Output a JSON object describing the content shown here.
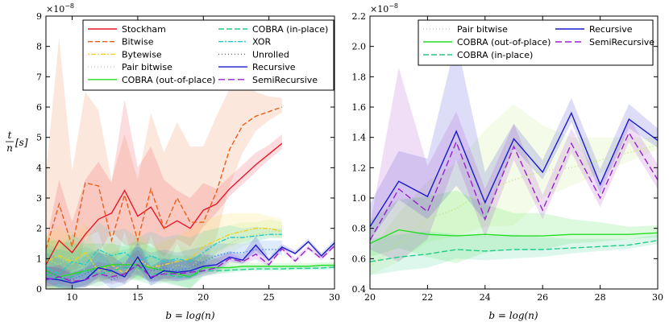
{
  "chart_data": [
    {
      "type": "line",
      "panel": "left",
      "title": "",
      "xlabel": "b = log(n)",
      "ylabel_num": "t",
      "ylabel_den": "n",
      "ylabel_unit": "[s]",
      "scale_base": "×10",
      "scale_exp": "−8",
      "xlim": [
        8,
        30
      ],
      "ylim": [
        0,
        9
      ],
      "xticks": [
        10,
        15,
        20,
        25,
        30
      ],
      "yticks": [
        0,
        1,
        2,
        3,
        4,
        5,
        6,
        7,
        8,
        9
      ],
      "legend_position": "top-right",
      "legend_columns": 2,
      "series": [
        {
          "name": "Stockham",
          "color": "#e8172b",
          "dash": "",
          "x": [
            8,
            9,
            10,
            11,
            12,
            13,
            14,
            15,
            16,
            17,
            18,
            19,
            20,
            21,
            22,
            23,
            24,
            25,
            26
          ],
          "values": [
            0.8,
            1.6,
            1.2,
            1.8,
            2.3,
            2.5,
            3.25,
            2.4,
            2.7,
            2.0,
            2.25,
            2.0,
            2.6,
            2.8,
            3.3,
            3.7,
            4.1,
            4.45,
            4.8
          ],
          "band": [
            0.7,
            2.0,
            1.0,
            1.8,
            1.9,
            1.0,
            3.0,
            1.6,
            2.0,
            1.6,
            1.0,
            1.0,
            0.9,
            0.5,
            0.4,
            0.4,
            0.4,
            0.3,
            0.3
          ]
        },
        {
          "name": "Bitwise",
          "color": "#e8601c",
          "dash": "6,3",
          "x": [
            8,
            9,
            10,
            11,
            12,
            13,
            14,
            15,
            16,
            17,
            18,
            19,
            20,
            21,
            22,
            23,
            24,
            25,
            26
          ],
          "values": [
            1.3,
            2.8,
            1.4,
            3.5,
            3.4,
            1.6,
            3.1,
            1.6,
            3.3,
            2.0,
            3.0,
            2.2,
            2.2,
            3.2,
            4.6,
            5.4,
            5.7,
            5.85,
            6.0
          ],
          "band": [
            2.5,
            5.5,
            2.5,
            3.0,
            2.5,
            2.0,
            2.0,
            2.0,
            2.5,
            2.5,
            2.5,
            2.5,
            2.5,
            2.5,
            2.0,
            1.5,
            0.8,
            0.5,
            0.3
          ]
        },
        {
          "name": "Bytewise",
          "color": "#f0d020",
          "dash": "2,2,6,2",
          "x": [
            8,
            9,
            10,
            11,
            12,
            13,
            14,
            15,
            16,
            17,
            18,
            19,
            20,
            21,
            22,
            23,
            24,
            25,
            26
          ],
          "values": [
            0.9,
            1.1,
            0.9,
            1.2,
            0.6,
            0.8,
            0.5,
            1.0,
            0.7,
            0.8,
            0.9,
            1.0,
            1.4,
            1.6,
            1.8,
            1.9,
            2.0,
            2.0,
            1.9
          ],
          "band": [
            0.8,
            1.0,
            0.8,
            1.0,
            0.6,
            0.8,
            0.5,
            1.0,
            0.6,
            0.8,
            0.8,
            1.0,
            0.9,
            0.8,
            0.7,
            0.6,
            0.5,
            0.4,
            0.4
          ]
        },
        {
          "name": "Pair bitwise",
          "color": "#b8e86a",
          "dash": "1,3",
          "x": [
            8,
            9,
            10,
            11,
            12,
            13,
            14,
            15,
            16,
            17,
            18,
            19,
            20,
            21,
            22,
            23,
            24,
            25,
            26
          ],
          "values": [
            1.0,
            0.8,
            1.1,
            0.6,
            0.7,
            0.5,
            0.9,
            0.6,
            1.0,
            0.5,
            0.8,
            0.7,
            1.1,
            1.3,
            1.5,
            1.7,
            1.8,
            1.9,
            1.9
          ],
          "band": [
            0.9,
            0.7,
            0.9,
            0.6,
            0.6,
            0.5,
            0.8,
            0.6,
            0.8,
            0.5,
            0.6,
            0.6,
            0.8,
            0.7,
            0.6,
            0.5,
            0.4,
            0.4,
            0.3
          ]
        },
        {
          "name": "COBRA (out-of-place)",
          "color": "#22dd22",
          "dash": "",
          "x": [
            8,
            9,
            10,
            11,
            12,
            13,
            14,
            15,
            16,
            17,
            18,
            19,
            20,
            21,
            22,
            23,
            24,
            25,
            26,
            27,
            28,
            29,
            30
          ],
          "values": [
            0.6,
            0.4,
            0.5,
            0.6,
            0.7,
            0.8,
            0.8,
            0.8,
            0.7,
            0.6,
            0.5,
            0.4,
            0.7,
            0.7,
            0.7,
            0.75,
            0.75,
            0.75,
            0.75,
            0.75,
            0.75,
            0.78,
            0.78
          ],
          "band": [
            1.0,
            1.2,
            1.0,
            0.9,
            0.8,
            0.7,
            0.6,
            0.8,
            0.7,
            0.6,
            0.6,
            0.7,
            0.4,
            0.3,
            0.2,
            0.15,
            0.1,
            0.1,
            0.1,
            0.1,
            0.1,
            0.1,
            0.1
          ]
        },
        {
          "name": "COBRA (in-place)",
          "color": "#22cc88",
          "dash": "7,3",
          "x": [
            8,
            9,
            10,
            11,
            12,
            13,
            14,
            15,
            16,
            17,
            18,
            19,
            20,
            21,
            22,
            23,
            24,
            25,
            26,
            27,
            28,
            29,
            30
          ],
          "values": [
            0.5,
            0.3,
            0.4,
            0.6,
            0.5,
            0.6,
            0.7,
            0.7,
            0.5,
            0.5,
            0.4,
            0.4,
            0.6,
            0.6,
            0.62,
            0.64,
            0.66,
            0.66,
            0.66,
            0.68,
            0.68,
            0.69,
            0.72
          ],
          "band": [
            0.8,
            1.0,
            0.8,
            0.8,
            0.7,
            0.6,
            0.6,
            0.7,
            0.6,
            0.5,
            0.5,
            0.6,
            0.3,
            0.2,
            0.15,
            0.1,
            0.1,
            0.1,
            0.1,
            0.1,
            0.1,
            0.1,
            0.1
          ]
        },
        {
          "name": "XOR",
          "color": "#22cccc",
          "dash": "6,2,2,2",
          "x": [
            8,
            9,
            10,
            11,
            12,
            13,
            14,
            15,
            16,
            17,
            18,
            19,
            20,
            21,
            22,
            23,
            24,
            25,
            26
          ],
          "values": [
            0.7,
            0.5,
            0.9,
            0.8,
            1.3,
            1.1,
            1.2,
            0.9,
            1.1,
            0.9,
            1.0,
            0.9,
            1.2,
            1.5,
            1.7,
            1.7,
            1.75,
            1.8,
            1.8
          ],
          "band": [
            0.8,
            0.8,
            0.9,
            0.8,
            0.9,
            0.8,
            0.8,
            0.8,
            0.8,
            0.8,
            0.8,
            0.8,
            0.7,
            0.5,
            0.4,
            0.3,
            0.3,
            0.2,
            0.2
          ]
        },
        {
          "name": "Unrolled",
          "color": "#2277dd",
          "dash": "1,3",
          "x": [
            8,
            9,
            10,
            11,
            12,
            13,
            14,
            15,
            16,
            17,
            18,
            19,
            20,
            21,
            22,
            23,
            24,
            25,
            26
          ],
          "values": [
            0.6,
            0.4,
            0.3,
            0.5,
            0.7,
            0.3,
            0.5,
            0.8,
            0.6,
            0.7,
            0.6,
            0.7,
            0.9,
            1.1,
            1.2,
            1.2,
            1.3,
            1.3,
            1.3
          ],
          "band": [
            0.6,
            0.6,
            0.5,
            0.6,
            0.6,
            0.5,
            0.6,
            0.6,
            0.6,
            0.6,
            0.6,
            0.6,
            0.5,
            0.4,
            0.3,
            0.3,
            0.3,
            0.3,
            0.3
          ]
        },
        {
          "name": "Recursive",
          "color": "#1a1acc",
          "dash": "",
          "x": [
            8,
            9,
            10,
            11,
            12,
            13,
            14,
            15,
            16,
            17,
            18,
            19,
            20,
            21,
            22,
            23,
            24,
            25,
            26,
            27,
            28,
            29,
            30
          ],
          "values": [
            0.35,
            0.3,
            0.2,
            0.3,
            0.7,
            0.6,
            0.4,
            1.05,
            0.35,
            0.6,
            0.55,
            0.6,
            0.75,
            0.8,
            1.05,
            0.95,
            1.45,
            0.95,
            1.38,
            1.17,
            1.56,
            1.09,
            1.52
          ],
          "band": [
            0.4,
            0.4,
            0.3,
            0.4,
            0.5,
            0.5,
            0.4,
            0.5,
            0.4,
            0.4,
            0.4,
            0.4,
            0.4,
            0.3,
            0.2,
            0.2,
            0.3,
            0.1,
            0.1,
            0.1,
            0.1,
            0.1,
            0.1
          ]
        },
        {
          "name": "SemiRecursive",
          "color": "#9922cc",
          "dash": "8,4",
          "x": [
            8,
            9,
            10,
            11,
            12,
            13,
            14,
            15,
            16,
            17,
            18,
            19,
            20,
            21,
            22,
            23,
            24,
            25,
            26,
            27,
            28,
            29,
            30
          ],
          "values": [
            0.3,
            0.4,
            0.25,
            0.3,
            0.5,
            0.4,
            0.5,
            0.8,
            0.4,
            0.5,
            0.5,
            0.55,
            0.6,
            0.7,
            1.0,
            0.9,
            1.15,
            0.8,
            1.33,
            0.92,
            1.35,
            1.0,
            1.42
          ],
          "band": [
            0.4,
            0.4,
            0.3,
            0.4,
            0.4,
            0.4,
            0.4,
            0.5,
            0.3,
            0.4,
            0.4,
            0.4,
            0.3,
            0.3,
            0.2,
            0.1,
            0.3,
            0.1,
            0.1,
            0.1,
            0.1,
            0.1,
            0.1
          ]
        }
      ]
    },
    {
      "type": "line",
      "panel": "right",
      "title": "",
      "xlabel": "b = log(n)",
      "scale_base": "×10",
      "scale_exp": "−8",
      "xlim": [
        20,
        30
      ],
      "ylim": [
        0.4,
        2.2
      ],
      "xticks": [
        20,
        22,
        24,
        26,
        28,
        30
      ],
      "yticks": [
        0.4,
        0.6,
        0.8,
        1.0,
        1.2,
        1.4,
        1.6,
        1.8,
        2.0,
        2.2
      ],
      "legend_position": "top-right",
      "legend_columns": 2,
      "series": [
        {
          "name": "Pair bitwise",
          "color": "#b8e86a",
          "dash": "1,3",
          "x": [
            20,
            21,
            22,
            23,
            24,
            25,
            26,
            27,
            28,
            29,
            30
          ],
          "values": [
            0.55,
            0.7,
            0.86,
            0.93,
            1.05,
            1.12,
            1.18,
            1.2,
            1.25,
            1.3,
            1.35
          ],
          "band": [
            0.1,
            0.2,
            0.25,
            0.3,
            0.4,
            0.5,
            0.3,
            0.2,
            0.15,
            0.1,
            0.05
          ]
        },
        {
          "name": "COBRA (out-of-place)",
          "color": "#22dd22",
          "dash": "",
          "x": [
            20,
            21,
            22,
            23,
            24,
            25,
            26,
            27,
            28,
            29,
            30
          ],
          "values": [
            0.7,
            0.79,
            0.76,
            0.75,
            0.76,
            0.75,
            0.75,
            0.76,
            0.76,
            0.76,
            0.77
          ],
          "band": [
            0.15,
            0.2,
            0.25,
            0.3,
            0.2,
            0.15,
            0.15,
            0.1,
            0.08,
            0.05,
            0.05
          ]
        },
        {
          "name": "COBRA (in-place)",
          "color": "#22cc88",
          "dash": "7,3",
          "x": [
            20,
            21,
            22,
            23,
            24,
            25,
            26,
            27,
            28,
            29,
            30
          ],
          "values": [
            0.58,
            0.61,
            0.63,
            0.66,
            0.65,
            0.66,
            0.66,
            0.67,
            0.68,
            0.69,
            0.72
          ],
          "band": [
            0.15,
            0.15,
            0.15,
            0.1,
            0.1,
            0.1,
            0.08,
            0.06,
            0.05,
            0.04,
            0.04
          ]
        },
        {
          "name": "Recursive",
          "color": "#1a1acc",
          "dash": "",
          "x": [
            20,
            21,
            22,
            23,
            24,
            25,
            26,
            27,
            28,
            29,
            30
          ],
          "values": [
            0.81,
            1.11,
            1.01,
            1.44,
            0.97,
            1.39,
            1.17,
            1.56,
            1.09,
            1.52,
            1.38
          ],
          "band": [
            0.15,
            0.2,
            0.25,
            0.6,
            0.2,
            0.1,
            0.08,
            0.1,
            0.1,
            0.1,
            0.08
          ]
        },
        {
          "name": "SemiRecursive",
          "color": "#9922cc",
          "dash": "8,4",
          "x": [
            20,
            21,
            22,
            23,
            24,
            25,
            26,
            27,
            28,
            29,
            30
          ],
          "values": [
            0.72,
            1.06,
            0.91,
            1.37,
            0.86,
            1.34,
            0.92,
            1.36,
            1.0,
            1.43,
            1.12
          ],
          "band": [
            0.1,
            0.8,
            0.3,
            0.2,
            0.2,
            0.15,
            0.1,
            0.1,
            0.1,
            0.1,
            0.1
          ]
        }
      ]
    }
  ]
}
